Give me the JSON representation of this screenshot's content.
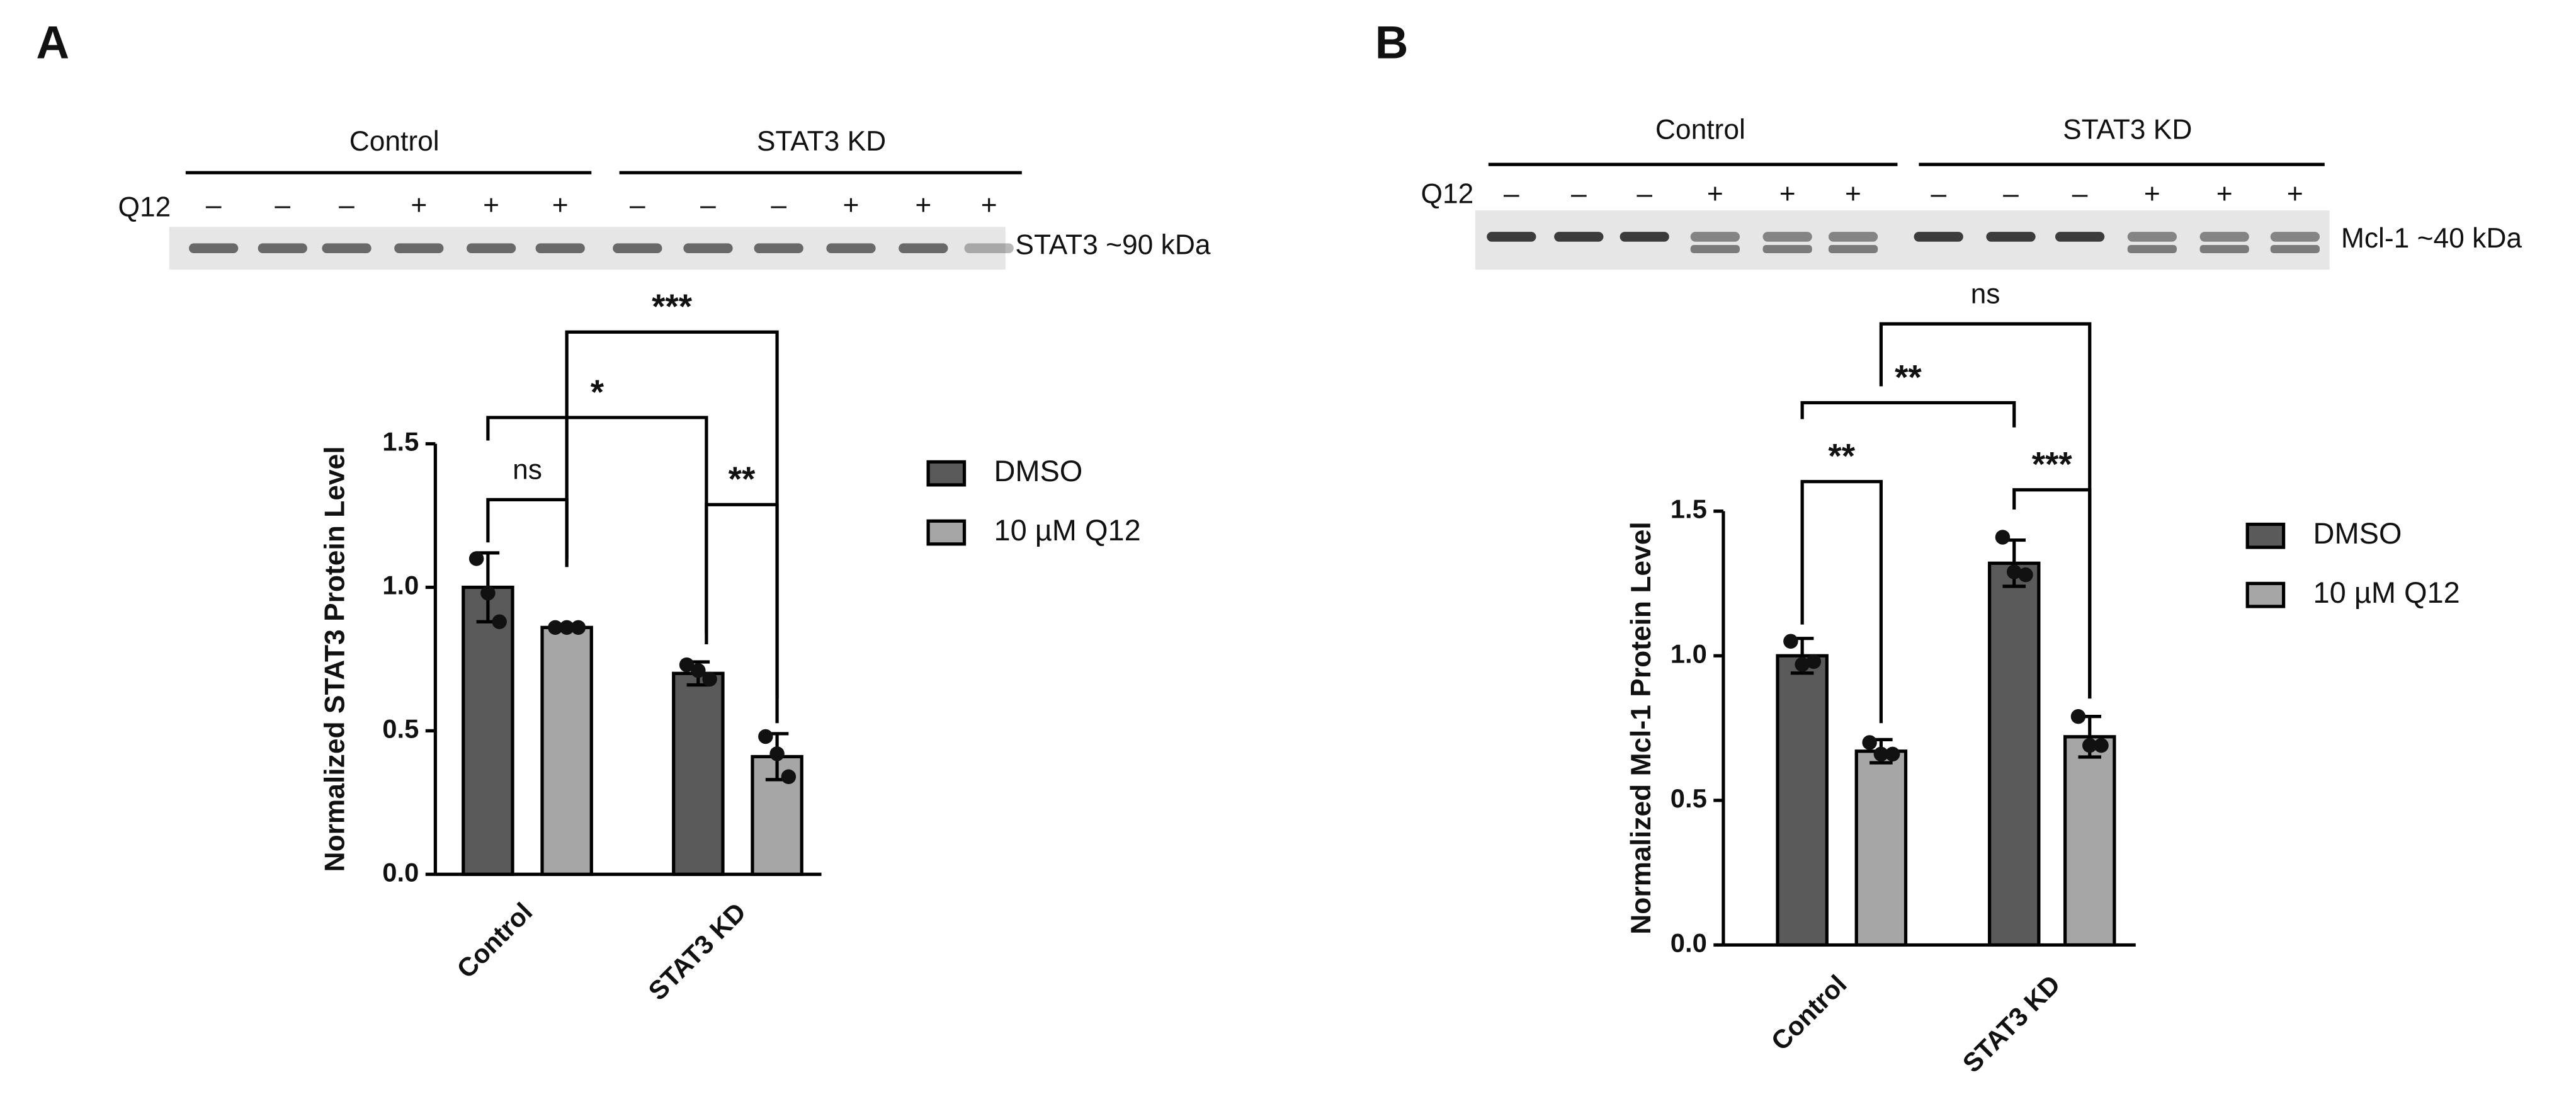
{
  "chart_data": [
    {
      "type": "bar",
      "panel": "A",
      "blot": {
        "groups": [
          "Control",
          "STAT3 KD"
        ],
        "row_label": "Q12",
        "signs": [
          "–",
          "–",
          "–",
          "+",
          "+",
          "+",
          "–",
          "–",
          "–",
          "+",
          "+",
          "+"
        ],
        "band_label": "STAT3 ~90 kDa"
      },
      "y_label": "Normalized STAT3 Protein Level",
      "categories": [
        "Control",
        "STAT3 KD"
      ],
      "series": [
        {
          "name": "DMSO",
          "color": "#5a5a5a",
          "values": [
            1.0,
            0.7
          ],
          "errors": [
            0.12,
            0.04
          ],
          "points": [
            [
              1.1,
              0.98,
              0.88
            ],
            [
              0.73,
              0.71,
              0.68
            ]
          ]
        },
        {
          "name": "10 µM Q12",
          "color": "#a6a6a6",
          "values": [
            0.86,
            0.41
          ],
          "errors": [
            0.01,
            0.08
          ],
          "points": [
            [
              0.86,
              0.86,
              0.86
            ],
            [
              0.48,
              0.42,
              0.34
            ]
          ]
        }
      ],
      "ylim": [
        0,
        1.5
      ],
      "yticks": [
        {
          "value": 0,
          "label": "0.0"
        },
        {
          "value": 0.5,
          "label": "0.5"
        },
        {
          "value": 1,
          "label": "1.0"
        },
        {
          "value": 1.5,
          "label": "1.5"
        }
      ],
      "significance": [
        "ns",
        "*",
        "***",
        "**"
      ]
    },
    {
      "type": "bar",
      "panel": "B",
      "blot": {
        "groups": [
          "Control",
          "STAT3 KD"
        ],
        "row_label": "Q12",
        "signs": [
          "–",
          "–",
          "–",
          "+",
          "+",
          "+",
          "–",
          "–",
          "–",
          "+",
          "+",
          "+"
        ],
        "band_label": "Mcl-1 ~40 kDa"
      },
      "y_label": "Normalized Mcl-1 Protein Level",
      "categories": [
        "Control",
        "STAT3 KD"
      ],
      "series": [
        {
          "name": "DMSO",
          "color": "#5a5a5a",
          "values": [
            1.0,
            1.32
          ],
          "errors": [
            0.06,
            0.08
          ],
          "points": [
            [
              1.05,
              0.97,
              0.98
            ],
            [
              1.41,
              1.29,
              1.28
            ]
          ]
        },
        {
          "name": "10 µM Q12",
          "color": "#a6a6a6",
          "values": [
            0.67,
            0.72
          ],
          "errors": [
            0.04,
            0.07
          ],
          "points": [
            [
              0.7,
              0.66,
              0.66
            ],
            [
              0.79,
              0.69,
              0.69
            ]
          ]
        }
      ],
      "ylim": [
        0,
        1.5
      ],
      "yticks": [
        {
          "value": 0,
          "label": "0.0"
        },
        {
          "value": 0.5,
          "label": "0.5"
        },
        {
          "value": 1,
          "label": "1.0"
        },
        {
          "value": 1.5,
          "label": "1.5"
        }
      ],
      "significance": [
        "**",
        "**",
        "ns",
        "***"
      ]
    }
  ]
}
